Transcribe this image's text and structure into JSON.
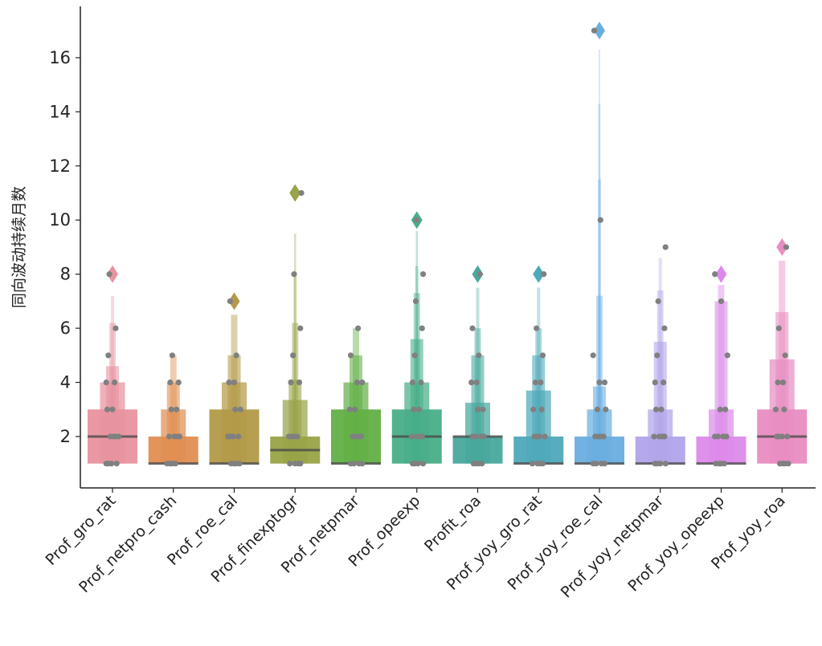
{
  "chart_data": {
    "type": "boxen",
    "title": "",
    "xlabel": "",
    "ylabel": "同向波动持续月数",
    "ylim": [
      0.1,
      17.9
    ],
    "yticks": [
      2,
      4,
      6,
      8,
      10,
      12,
      14,
      16
    ],
    "grid": false,
    "categories": [
      "Prof_gro_rat",
      "Prof_netpro_cash",
      "Prof_roe_cal",
      "Prof_finexptogr",
      "Prof_netpmar",
      "Prof_opeexp",
      "Profit_roa",
      "Prof_yoy_gro_rat",
      "Prof_yoy_roe_cal",
      "Prof_yoy_netpmar",
      "Prof_yoy_opeexp",
      "Prof_yoy_roa"
    ],
    "series": [
      {
        "category": "Prof_gro_rat",
        "color": "#e8929f",
        "boxes": [
          [
            1,
            3
          ],
          [
            1,
            4
          ],
          [
            1,
            4.6
          ],
          [
            1,
            6.2
          ],
          [
            1,
            7.2
          ]
        ],
        "median": 2,
        "outliers": [
          8
        ],
        "points": [
          1,
          2,
          3,
          4,
          5,
          6,
          8
        ]
      },
      {
        "category": "Prof_netpro_cash",
        "color": "#e08e52",
        "boxes": [
          [
            1,
            2
          ],
          [
            1,
            3
          ],
          [
            1,
            4
          ],
          [
            1,
            5
          ]
        ],
        "median": 1,
        "outliers": [],
        "points": [
          1,
          2,
          3,
          4,
          5
        ]
      },
      {
        "category": "Prof_roe_cal",
        "color": "#b39a48",
        "boxes": [
          [
            1,
            3
          ],
          [
            1,
            4
          ],
          [
            1,
            5
          ],
          [
            1,
            6.5
          ]
        ],
        "median": 1,
        "outliers": [
          7
        ],
        "points": [
          1,
          2,
          3,
          4,
          5,
          7
        ]
      },
      {
        "category": "Prof_finexptogr",
        "color": "#99a348",
        "boxes": [
          [
            1,
            2
          ],
          [
            1,
            3.35
          ],
          [
            1,
            4.1
          ],
          [
            1,
            6.2
          ],
          [
            1,
            8.1
          ],
          [
            1,
            9.5
          ]
        ],
        "median": 1.5,
        "outliers": [
          11
        ],
        "points": [
          1,
          2,
          4,
          5,
          6,
          8,
          11
        ]
      },
      {
        "category": "Prof_netpmar",
        "color": "#62b046",
        "boxes": [
          [
            1,
            3
          ],
          [
            1,
            4
          ],
          [
            1,
            5
          ],
          [
            1,
            6
          ]
        ],
        "median": 1,
        "outliers": [],
        "points": [
          1,
          2,
          3,
          4,
          5,
          6
        ]
      },
      {
        "category": "Prof_opeexp",
        "color": "#48ae88",
        "boxes": [
          [
            1,
            3
          ],
          [
            1,
            4
          ],
          [
            1,
            5.6
          ],
          [
            1,
            7.3
          ],
          [
            1,
            8.3
          ],
          [
            1,
            9.6
          ]
        ],
        "median": 2,
        "outliers": [
          10
        ],
        "points": [
          1,
          2,
          3,
          4,
          5,
          6,
          7,
          8,
          10
        ]
      },
      {
        "category": "Profit_roa",
        "color": "#48a89c",
        "boxes": [
          [
            1,
            2
          ],
          [
            1,
            3.25
          ],
          [
            1,
            5
          ],
          [
            1,
            6
          ],
          [
            1,
            7.5
          ]
        ],
        "median": 2,
        "outliers": [
          8
        ],
        "points": [
          1,
          2,
          3,
          4,
          5,
          6,
          8
        ]
      },
      {
        "category": "Prof_yoy_gro_rat",
        "color": "#4ea9b9",
        "boxes": [
          [
            1,
            2
          ],
          [
            1,
            3.7
          ],
          [
            1,
            5
          ],
          [
            1,
            6
          ],
          [
            1,
            7.5
          ]
        ],
        "median": 1,
        "outliers": [
          8
        ],
        "points": [
          1,
          2,
          3,
          4,
          5,
          6,
          8
        ]
      },
      {
        "category": "Prof_yoy_roe_cal",
        "color": "#6aaee0",
        "boxes": [
          [
            1,
            2
          ],
          [
            1,
            3
          ],
          [
            1,
            3.85
          ],
          [
            1,
            7.2
          ],
          [
            1,
            11.5
          ],
          [
            1,
            14.3
          ],
          [
            1,
            16.3
          ]
        ],
        "median": 1,
        "outliers": [
          17
        ],
        "points": [
          1,
          2,
          3,
          4,
          5,
          10,
          17
        ]
      },
      {
        "category": "Prof_yoy_netpmar",
        "color": "#b2a4ea",
        "boxes": [
          [
            1,
            2
          ],
          [
            1,
            3
          ],
          [
            1,
            5.5
          ],
          [
            1,
            7.4
          ],
          [
            1,
            8.6
          ]
        ],
        "median": 1,
        "outliers": [],
        "points": [
          1,
          2,
          3,
          4,
          5,
          6,
          7,
          9
        ]
      },
      {
        "category": "Prof_yoy_opeexp",
        "color": "#dc8aea",
        "boxes": [
          [
            1,
            2
          ],
          [
            1,
            3
          ],
          [
            1,
            7
          ],
          [
            1,
            7.6
          ]
        ],
        "median": 1,
        "outliers": [
          8
        ],
        "points": [
          1,
          2,
          3,
          5,
          7,
          8
        ]
      },
      {
        "category": "Prof_yoy_roa",
        "color": "#e88dc2",
        "boxes": [
          [
            1,
            3
          ],
          [
            1,
            4.85
          ],
          [
            1,
            6.6
          ],
          [
            1,
            8.5
          ]
        ],
        "median": 2,
        "outliers": [
          9
        ],
        "points": [
          1,
          2,
          3,
          4,
          5,
          6,
          9
        ]
      }
    ],
    "point_color": "#808080"
  }
}
